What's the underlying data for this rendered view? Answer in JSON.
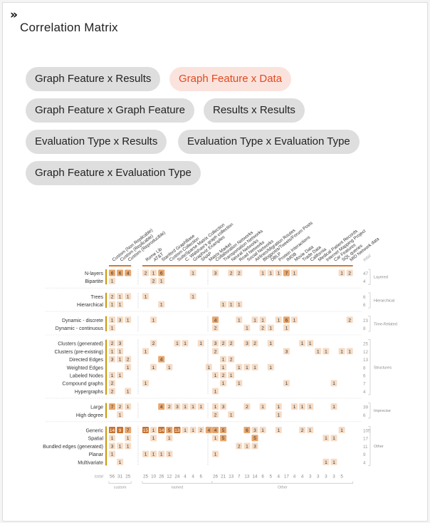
{
  "header": {
    "collapse_icon": "double-chevron-right-icon",
    "title": "Correlation Matrix"
  },
  "tabs": [
    {
      "label": "Graph Feature x Results",
      "active": false
    },
    {
      "label": "Graph Feature x Data",
      "active": true
    },
    {
      "label": "Graph Feature x Graph Feature",
      "active": false
    },
    {
      "label": "Results x Results",
      "active": false
    },
    {
      "label": "Evaluation Type x Results",
      "active": false
    },
    {
      "label": "Evaluation Type x Evaluation Type",
      "active": false
    },
    {
      "label": "Graph Feature x Evaluation Type",
      "active": false
    }
  ],
  "colors": {
    "accent": "#e04a1f",
    "chip_bg": "#dedede",
    "chip_active_bg": "#fbe3dd",
    "bar_gold": "#c9970a",
    "bar_orange": "#d8772e",
    "cell_light": "#f6dcc6",
    "cell_mid": "#e8a66d",
    "cell_dark": "#c8722f"
  },
  "chart_data": {
    "type": "table",
    "columns": [
      "Custom (Non Replicable)",
      "Custom (Replicable)",
      "Custom (Reproducible)",
      "Rome Lib",
      "AT&T",
      "Stanford GraphBase",
      "Custom Collection",
      "SuiteSparse Matrix Collection",
      "C. Walshaw's graph collection",
      "Graphviz Examples",
      "SNAP",
      "Matrix Market",
      "Collaboration Networks",
      "Transportation Networks",
      "Neural Networks",
      "Road Networks",
      "Social Networks",
      "Airlines/Migration Routes",
      "Blogposts/Tweets/Forum Posts",
      "DBLP",
      "Protein Interactions",
      "IMDB",
      "Movie Data",
      "Trade Data",
      "California",
      "Medical Patient Records",
      "Internet Mapping Project",
      "Car Features",
      "SQL queries",
      "MID Network data"
    ],
    "column_groups": [
      {
        "name": "custom",
        "count": 3
      },
      {
        "name": "named",
        "count": 9
      },
      {
        "name": "Other",
        "count": 18
      }
    ],
    "total_label": "total",
    "row_groups": [
      {
        "name": "Layered",
        "rows": [
          {
            "label": "N-layers",
            "total": "47",
            "cells": [
              [
                0,
                6
              ],
              [
                1,
                6
              ],
              [
                2,
                4
              ],
              [
                3,
                2
              ],
              [
                4,
                1
              ],
              [
                5,
                6
              ],
              [
                9,
                1
              ],
              [
                12,
                3
              ],
              [
                14,
                2
              ],
              [
                15,
                2
              ],
              [
                18,
                1
              ],
              [
                19,
                1
              ],
              [
                20,
                1
              ],
              [
                21,
                7
              ],
              [
                22,
                1
              ],
              [
                28,
                1
              ],
              [
                29,
                2
              ]
            ]
          },
          {
            "label": "Bipartite",
            "total": "4",
            "cells": [
              [
                0,
                1
              ],
              [
                4,
                2
              ],
              [
                5,
                1
              ]
            ]
          }
        ]
      },
      {
        "name": "Hierarchical",
        "rows": [
          {
            "label": "Trees",
            "total": "6",
            "cells": [
              [
                0,
                2
              ],
              [
                1,
                1
              ],
              [
                2,
                1
              ],
              [
                3,
                1
              ],
              [
                9,
                1
              ]
            ]
          },
          {
            "label": "Hierarchical",
            "total": "6",
            "cells": [
              [
                0,
                1
              ],
              [
                1,
                1
              ],
              [
                5,
                1
              ],
              [
                13,
                1
              ],
              [
                14,
                1
              ],
              [
                15,
                1
              ]
            ]
          }
        ]
      },
      {
        "name": "Time-Related",
        "rows": [
          {
            "label": "Dynamic - discrete",
            "total": "23",
            "cells": [
              [
                0,
                1
              ],
              [
                1,
                3
              ],
              [
                2,
                1
              ],
              [
                4,
                1
              ],
              [
                12,
                4
              ],
              [
                15,
                1
              ],
              [
                17,
                1
              ],
              [
                18,
                1
              ],
              [
                20,
                1
              ],
              [
                21,
                6
              ],
              [
                22,
                1
              ],
              [
                29,
                2
              ]
            ]
          },
          {
            "label": "Dynamic - continuous",
            "total": "8",
            "cells": [
              [
                0,
                1
              ],
              [
                12,
                2
              ],
              [
                16,
                1
              ],
              [
                18,
                2
              ],
              [
                19,
                1
              ],
              [
                21,
                1
              ]
            ]
          }
        ]
      },
      {
        "name": "Structures",
        "rows": [
          {
            "label": "Clusters (generated)",
            "total": "25",
            "cells": [
              [
                0,
                2
              ],
              [
                1,
                3
              ],
              [
                4,
                2
              ],
              [
                7,
                1
              ],
              [
                8,
                1
              ],
              [
                10,
                1
              ],
              [
                12,
                3
              ],
              [
                13,
                2
              ],
              [
                14,
                2
              ],
              [
                16,
                3
              ],
              [
                17,
                2
              ],
              [
                19,
                1
              ],
              [
                23,
                1
              ],
              [
                24,
                1
              ]
            ]
          },
          {
            "label": "Clusters (pre-existing)",
            "total": "12",
            "cells": [
              [
                0,
                1
              ],
              [
                1,
                1
              ],
              [
                3,
                1
              ],
              [
                12,
                2
              ],
              [
                21,
                3
              ],
              [
                25,
                1
              ],
              [
                26,
                1
              ],
              [
                28,
                1
              ],
              [
                29,
                1
              ]
            ]
          },
          {
            "label": "Directed Edges",
            "total": "13",
            "cells": [
              [
                0,
                3
              ],
              [
                1,
                1
              ],
              [
                2,
                2
              ],
              [
                5,
                4
              ],
              [
                13,
                1
              ],
              [
                14,
                2
              ]
            ]
          },
          {
            "label": "Weighted Edges",
            "total": "8",
            "cells": [
              [
                2,
                1
              ],
              [
                4,
                1
              ],
              [
                6,
                1
              ],
              [
                11,
                1
              ],
              [
                13,
                1
              ],
              [
                15,
                1
              ],
              [
                16,
                1
              ],
              [
                17,
                1
              ],
              [
                19,
                1
              ]
            ]
          },
          {
            "label": "Labeled Nodes",
            "total": "6",
            "cells": [
              [
                0,
                1
              ],
              [
                1,
                1
              ],
              [
                12,
                1
              ],
              [
                13,
                2
              ],
              [
                14,
                1
              ]
            ]
          },
          {
            "label": "Compound graphs",
            "total": "7",
            "cells": [
              [
                0,
                2
              ],
              [
                3,
                1
              ],
              [
                13,
                1
              ],
              [
                15,
                1
              ],
              [
                21,
                1
              ],
              [
                27,
                1
              ]
            ]
          },
          {
            "label": "Hypergraphs",
            "total": "4",
            "cells": [
              [
                0,
                2
              ],
              [
                2,
                1
              ],
              [
                12,
                1
              ]
            ]
          }
        ]
      },
      {
        "name": "Imprecise",
        "rows": [
          {
            "label": "Large",
            "total": "39",
            "cells": [
              [
                0,
                7
              ],
              [
                1,
                2
              ],
              [
                2,
                1
              ],
              [
                5,
                4
              ],
              [
                6,
                2
              ],
              [
                7,
                3
              ],
              [
                8,
                1
              ],
              [
                9,
                1
              ],
              [
                10,
                1
              ],
              [
                12,
                1
              ],
              [
                13,
                3
              ],
              [
                16,
                2
              ],
              [
                18,
                1
              ],
              [
                20,
                1
              ],
              [
                22,
                1
              ],
              [
                23,
                1
              ],
              [
                24,
                1
              ],
              [
                27,
                1
              ]
            ]
          },
          {
            "label": "High degree",
            "total": "6",
            "cells": [
              [
                1,
                1
              ],
              [
                12,
                2
              ],
              [
                14,
                1
              ],
              [
                20,
                1
              ]
            ]
          }
        ]
      },
      {
        "name": "Other",
        "rows": [
          {
            "label": "Generic",
            "total": "105",
            "cells": [
              [
                0,
                14
              ],
              [
                1,
                9
              ],
              [
                2,
                7
              ],
              [
                3,
                15
              ],
              [
                4,
                1
              ],
              [
                5,
                14
              ],
              [
                6,
                5
              ],
              [
                7,
                13
              ],
              [
                8,
                1
              ],
              [
                9,
                1
              ],
              [
                10,
                2
              ],
              [
                11,
                4
              ],
              [
                12,
                4
              ],
              [
                13,
                5
              ],
              [
                16,
                6
              ],
              [
                17,
                3
              ],
              [
                18,
                1
              ],
              [
                20,
                1
              ],
              [
                23,
                2
              ],
              [
                24,
                1
              ],
              [
                28,
                1
              ]
            ]
          },
          {
            "label": "Spatial",
            "total": "17",
            "cells": [
              [
                0,
                1
              ],
              [
                2,
                1
              ],
              [
                4,
                1
              ],
              [
                6,
                1
              ],
              [
                12,
                1
              ],
              [
                13,
                5
              ],
              [
                17,
                5
              ],
              [
                26,
                1
              ],
              [
                27,
                1
              ]
            ]
          },
          {
            "label": "Bundled edges (generated)",
            "total": "11",
            "cells": [
              [
                0,
                3
              ],
              [
                1,
                1
              ],
              [
                2,
                1
              ],
              [
                15,
                2
              ],
              [
                16,
                1
              ],
              [
                17,
                3
              ]
            ]
          },
          {
            "label": "Planar",
            "total": "9",
            "cells": [
              [
                0,
                1
              ],
              [
                3,
                1
              ],
              [
                4,
                1
              ],
              [
                5,
                1
              ],
              [
                6,
                1
              ],
              [
                12,
                1
              ]
            ]
          },
          {
            "label": "Multivariate",
            "total": "4",
            "cells": [
              [
                1,
                1
              ],
              [
                26,
                1
              ],
              [
                27,
                1
              ]
            ]
          }
        ]
      }
    ],
    "column_totals": [
      "56",
      "31",
      "25",
      "25",
      "10",
      "26",
      "12",
      "24",
      "4",
      "4",
      "6",
      "",
      "26",
      "21",
      "13",
      "7",
      "13",
      "14",
      "6",
      "5",
      "4",
      "17",
      "4",
      "4",
      "3",
      "3",
      "3",
      "3",
      "5",
      ""
    ]
  }
}
